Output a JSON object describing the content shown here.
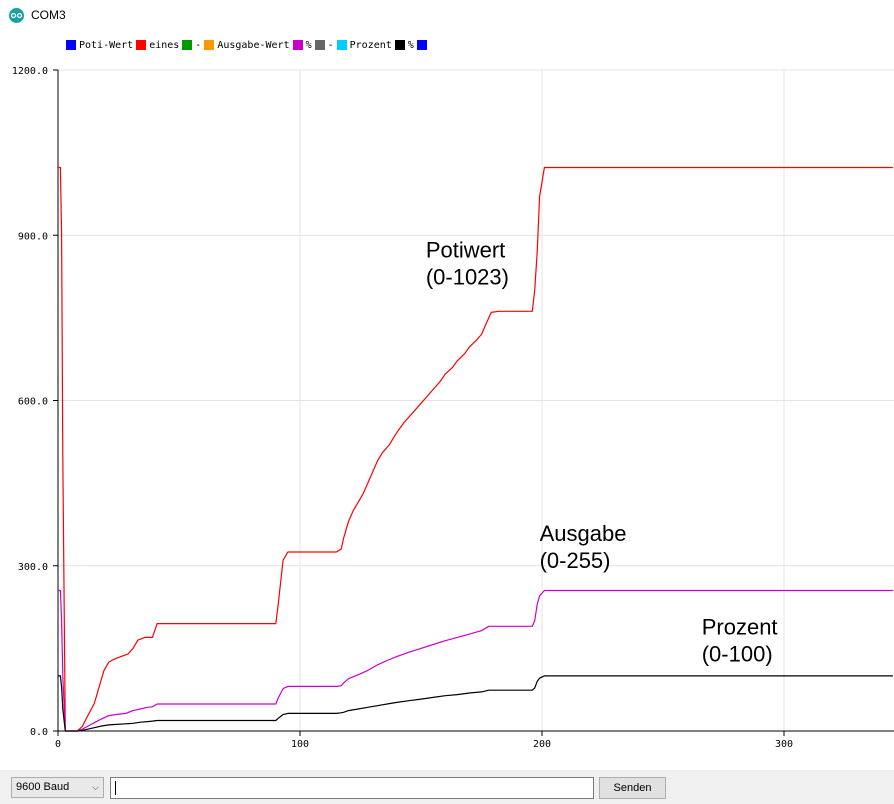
{
  "window": {
    "title": "COM3",
    "icon": "arduino-icon"
  },
  "chart_data": {
    "type": "line",
    "legend_position": "top-left",
    "legend": [
      {
        "label": "Poti-Wert",
        "color": "#0000ff"
      },
      {
        "label": "eines",
        "color": "#ff0000"
      },
      {
        "label": "-",
        "color": "#009900"
      },
      {
        "label": "Ausgabe-Wert",
        "color": "#ff9900"
      },
      {
        "label": "%",
        "color": "#cc00cc"
      },
      {
        "label": "-",
        "color": "#666666"
      },
      {
        "label": "Prozent",
        "color": "#00ccff"
      },
      {
        "label": "%",
        "color": "#000000"
      },
      {
        "label": "",
        "color": "#0000ff"
      }
    ],
    "xlim": [
      0,
      345
    ],
    "ylim": [
      0,
      1200
    ],
    "x_ticks": [
      0,
      100,
      200,
      300
    ],
    "y_ticks": [
      0,
      300,
      600,
      900,
      1200
    ],
    "y_tick_labels": [
      "0.0",
      "300.0",
      "600.0",
      "900.0",
      "1200.0"
    ],
    "grid": true,
    "series": [
      {
        "color": "#ff0000",
        "points": [
          [
            0,
            1023
          ],
          [
            1,
            1023
          ],
          [
            1.5,
            900
          ],
          [
            2,
            500
          ],
          [
            3,
            0
          ],
          [
            8,
            0
          ],
          [
            10,
            8
          ],
          [
            12,
            25
          ],
          [
            15,
            50
          ],
          [
            17,
            80
          ],
          [
            19,
            110
          ],
          [
            21,
            125
          ],
          [
            23,
            130
          ],
          [
            26,
            135
          ],
          [
            29,
            140
          ],
          [
            31,
            150
          ],
          [
            33,
            165
          ],
          [
            36,
            170
          ],
          [
            39,
            170
          ],
          [
            41,
            195
          ],
          [
            60,
            195
          ],
          [
            80,
            195
          ],
          [
            90,
            195
          ],
          [
            91,
            230
          ],
          [
            93,
            310
          ],
          [
            95,
            325
          ],
          [
            115,
            325
          ],
          [
            117,
            330
          ],
          [
            118,
            350
          ],
          [
            120,
            380
          ],
          [
            122,
            400
          ],
          [
            124,
            415
          ],
          [
            126,
            430
          ],
          [
            128,
            450
          ],
          [
            130,
            470
          ],
          [
            132,
            490
          ],
          [
            134,
            505
          ],
          [
            137,
            520
          ],
          [
            139,
            535
          ],
          [
            141,
            548
          ],
          [
            143,
            560
          ],
          [
            146,
            575
          ],
          [
            148,
            585
          ],
          [
            150,
            595
          ],
          [
            153,
            610
          ],
          [
            155,
            620
          ],
          [
            158,
            635
          ],
          [
            160,
            648
          ],
          [
            163,
            660
          ],
          [
            165,
            672
          ],
          [
            168,
            685
          ],
          [
            170,
            697
          ],
          [
            173,
            710
          ],
          [
            175,
            720
          ],
          [
            177,
            740
          ],
          [
            179,
            760
          ],
          [
            182,
            762
          ],
          [
            190,
            762
          ],
          [
            196,
            762
          ],
          [
            197,
            800
          ],
          [
            198,
            870
          ],
          [
            199,
            970
          ],
          [
            201,
            1023
          ],
          [
            260,
            1023
          ],
          [
            345,
            1023
          ]
        ]
      },
      {
        "color": "#cc00cc",
        "points": [
          [
            0,
            255
          ],
          [
            1,
            255
          ],
          [
            1.5,
            200
          ],
          [
            2,
            100
          ],
          [
            3,
            0
          ],
          [
            8,
            0
          ],
          [
            10,
            3
          ],
          [
            12,
            8
          ],
          [
            15,
            15
          ],
          [
            18,
            22
          ],
          [
            21,
            28
          ],
          [
            24,
            30
          ],
          [
            28,
            32
          ],
          [
            31,
            37
          ],
          [
            34,
            40
          ],
          [
            37,
            43
          ],
          [
            39,
            44
          ],
          [
            41,
            49
          ],
          [
            60,
            49
          ],
          [
            80,
            49
          ],
          [
            90,
            49
          ],
          [
            91,
            60
          ],
          [
            93,
            77
          ],
          [
            95,
            81
          ],
          [
            115,
            81
          ],
          [
            117,
            82
          ],
          [
            118,
            87
          ],
          [
            120,
            95
          ],
          [
            124,
            102
          ],
          [
            128,
            110
          ],
          [
            132,
            120
          ],
          [
            136,
            128
          ],
          [
            140,
            135
          ],
          [
            145,
            143
          ],
          [
            150,
            150
          ],
          [
            155,
            157
          ],
          [
            160,
            164
          ],
          [
            165,
            170
          ],
          [
            170,
            176
          ],
          [
            175,
            182
          ],
          [
            178,
            190
          ],
          [
            182,
            190
          ],
          [
            190,
            190
          ],
          [
            196,
            190
          ],
          [
            197,
            200
          ],
          [
            198,
            230
          ],
          [
            199,
            245
          ],
          [
            201,
            255
          ],
          [
            260,
            255
          ],
          [
            345,
            255
          ]
        ]
      },
      {
        "color": "#000000",
        "points": [
          [
            0,
            100
          ],
          [
            1,
            100
          ],
          [
            1.5,
            80
          ],
          [
            2,
            40
          ],
          [
            3,
            0
          ],
          [
            8,
            0
          ],
          [
            10,
            1
          ],
          [
            12,
            3
          ],
          [
            15,
            6
          ],
          [
            18,
            9
          ],
          [
            21,
            11
          ],
          [
            24,
            12
          ],
          [
            28,
            13
          ],
          [
            31,
            14
          ],
          [
            34,
            16
          ],
          [
            37,
            17
          ],
          [
            39,
            18
          ],
          [
            41,
            19
          ],
          [
            60,
            19
          ],
          [
            80,
            19
          ],
          [
            90,
            19
          ],
          [
            91,
            23
          ],
          [
            93,
            30
          ],
          [
            95,
            32
          ],
          [
            115,
            32
          ],
          [
            117,
            33
          ],
          [
            118,
            34
          ],
          [
            120,
            37
          ],
          [
            124,
            40
          ],
          [
            128,
            43
          ],
          [
            132,
            46
          ],
          [
            136,
            49
          ],
          [
            140,
            52
          ],
          [
            145,
            55
          ],
          [
            150,
            58
          ],
          [
            155,
            61
          ],
          [
            160,
            64
          ],
          [
            165,
            66
          ],
          [
            170,
            69
          ],
          [
            175,
            71
          ],
          [
            178,
            74
          ],
          [
            182,
            74
          ],
          [
            190,
            74
          ],
          [
            196,
            74
          ],
          [
            197,
            78
          ],
          [
            198,
            90
          ],
          [
            199,
            96
          ],
          [
            201,
            100
          ],
          [
            260,
            100
          ],
          [
            345,
            100
          ]
        ]
      }
    ],
    "annotations": [
      {
        "lines": [
          "Potiwert",
          "(0-1023)"
        ],
        "x": 152,
        "y": 860
      },
      {
        "lines": [
          "Ausgabe",
          "(0-255)"
        ],
        "x": 199,
        "y": 345
      },
      {
        "lines": [
          "Prozent",
          "(0-100)"
        ],
        "x": 266,
        "y": 175
      }
    ]
  },
  "bottom": {
    "baud_value": "9600 Baud",
    "input_value": "",
    "send_label": "Senden"
  }
}
